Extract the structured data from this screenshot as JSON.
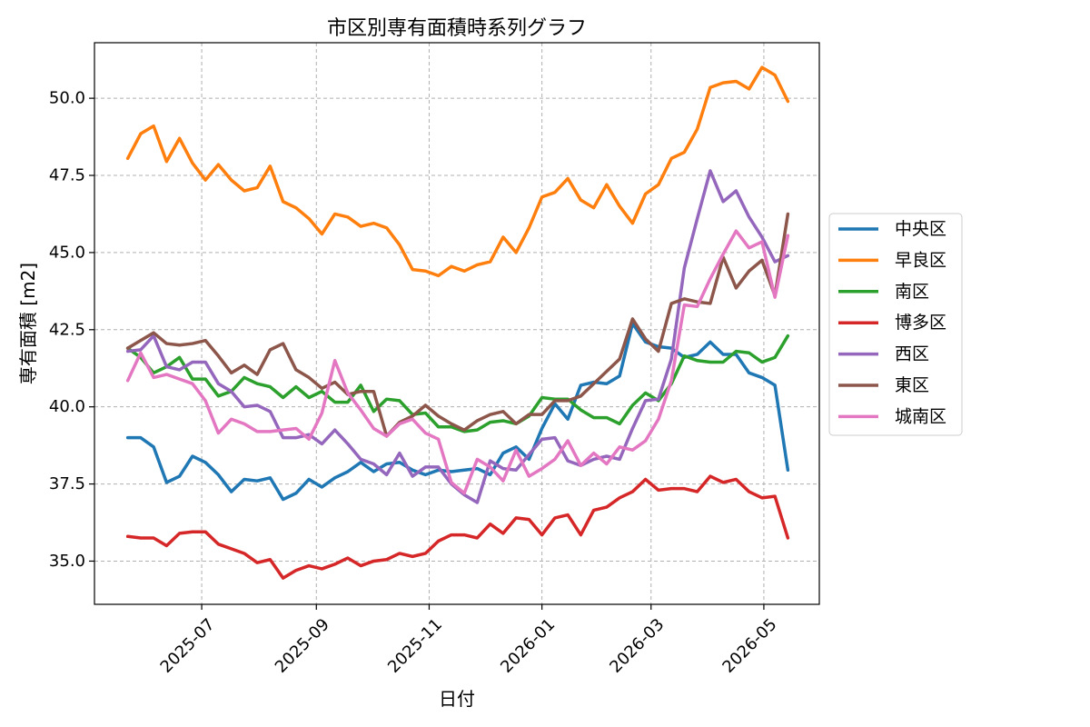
{
  "chart_data": {
    "type": "line",
    "title": "市区別専有面積時系列グラフ",
    "xlabel": "日付",
    "ylabel": "専有面積 [m2]",
    "x_ticks": [
      "2025-07",
      "2025-09",
      "2025-11",
      "2026-01",
      "2026-03",
      "2026-05"
    ],
    "y_ticks": [
      "35.0",
      "37.5",
      "40.0",
      "42.5",
      "45.0",
      "47.5",
      "50.0"
    ],
    "ylim": [
      33.6,
      51.8
    ],
    "xlim": [
      "2025-05-04",
      "2026-05-31"
    ],
    "grid": true,
    "legend_position": "outside-right",
    "x": [
      "2025-05-22",
      "2025-05-29",
      "2025-06-05",
      "2025-06-12",
      "2025-06-19",
      "2025-06-26",
      "2025-07-03",
      "2025-07-10",
      "2025-07-17",
      "2025-07-24",
      "2025-07-31",
      "2025-08-07",
      "2025-08-14",
      "2025-08-21",
      "2025-08-28",
      "2025-09-04",
      "2025-09-11",
      "2025-09-18",
      "2025-09-25",
      "2025-10-02",
      "2025-10-09",
      "2025-10-16",
      "2025-10-23",
      "2025-10-30",
      "2025-11-06",
      "2025-11-13",
      "2025-11-20",
      "2025-11-27",
      "2025-12-04",
      "2025-12-11",
      "2025-12-18",
      "2025-12-25",
      "2026-01-01",
      "2026-01-08",
      "2026-01-15",
      "2026-01-22",
      "2026-01-29",
      "2026-02-05",
      "2026-02-12",
      "2026-02-19",
      "2026-02-26",
      "2026-03-05",
      "2026-03-12",
      "2026-03-19",
      "2026-03-26",
      "2026-04-02",
      "2026-04-09",
      "2026-04-16",
      "2026-04-23",
      "2026-04-30",
      "2026-05-07",
      "2026-05-14"
    ],
    "series": [
      {
        "name": "中央区",
        "color": "#1f77b4",
        "values": [
          39.0,
          39.0,
          38.7,
          37.55,
          37.75,
          38.4,
          38.2,
          37.8,
          37.25,
          37.65,
          37.6,
          37.7,
          37.0,
          37.2,
          37.65,
          37.4,
          37.7,
          37.9,
          38.2,
          37.9,
          38.15,
          38.2,
          37.95,
          37.8,
          37.95,
          37.9,
          37.95,
          38.0,
          37.8,
          38.5,
          38.7,
          38.3,
          39.3,
          40.1,
          39.6,
          40.7,
          40.8,
          40.75,
          41.0,
          42.7,
          42.1,
          41.95,
          41.9,
          41.6,
          41.7,
          42.1,
          41.7,
          41.7,
          41.1,
          40.95,
          40.7,
          37.95
        ]
      },
      {
        "name": "早良区",
        "color": "#ff7f0e",
        "values": [
          48.05,
          48.85,
          49.1,
          47.95,
          48.7,
          47.9,
          47.35,
          47.85,
          47.35,
          47.0,
          47.1,
          47.8,
          46.65,
          46.45,
          46.1,
          45.6,
          46.25,
          46.15,
          45.85,
          45.95,
          45.8,
          45.25,
          44.45,
          44.4,
          44.25,
          44.55,
          44.4,
          44.6,
          44.7,
          45.5,
          45.0,
          45.8,
          46.8,
          46.95,
          47.4,
          46.7,
          46.45,
          47.2,
          46.5,
          45.95,
          46.9,
          47.2,
          48.05,
          48.25,
          49.0,
          50.35,
          50.5,
          50.55,
          50.3,
          51.0,
          50.75,
          49.9
        ]
      },
      {
        "name": "南区",
        "color": "#2ca02c",
        "values": [
          41.9,
          41.6,
          41.1,
          41.3,
          41.6,
          40.9,
          40.9,
          40.35,
          40.5,
          40.95,
          40.75,
          40.65,
          40.3,
          40.65,
          40.3,
          40.5,
          40.15,
          40.15,
          40.7,
          39.85,
          40.25,
          40.2,
          39.75,
          39.8,
          39.35,
          39.35,
          39.2,
          39.25,
          39.5,
          39.55,
          39.45,
          39.7,
          40.3,
          40.25,
          40.25,
          39.9,
          39.65,
          39.65,
          39.45,
          40.05,
          40.45,
          40.2,
          40.75,
          41.65,
          41.5,
          41.45,
          41.45,
          41.8,
          41.75,
          41.45,
          41.6,
          42.3
        ]
      },
      {
        "name": "博多区",
        "color": "#d62728",
        "values": [
          35.8,
          35.75,
          35.75,
          35.5,
          35.9,
          35.95,
          35.95,
          35.55,
          35.4,
          35.25,
          34.95,
          35.05,
          34.45,
          34.7,
          34.85,
          34.75,
          34.9,
          35.1,
          34.85,
          35.0,
          35.05,
          35.25,
          35.15,
          35.25,
          35.65,
          35.85,
          35.85,
          35.75,
          36.2,
          35.9,
          36.4,
          36.35,
          35.85,
          36.4,
          36.5,
          35.85,
          36.65,
          36.75,
          37.05,
          37.25,
          37.65,
          37.3,
          37.35,
          37.35,
          37.25,
          37.75,
          37.55,
          37.65,
          37.25,
          37.05,
          37.1,
          35.75
        ]
      },
      {
        "name": "西区",
        "color": "#9467bd",
        "values": [
          41.8,
          41.85,
          42.3,
          41.3,
          41.2,
          41.45,
          41.45,
          40.75,
          40.5,
          40.0,
          40.05,
          39.85,
          39.0,
          39.0,
          39.1,
          38.8,
          39.25,
          38.8,
          38.3,
          38.15,
          37.8,
          38.5,
          37.75,
          38.05,
          38.05,
          37.5,
          37.15,
          36.9,
          38.25,
          38.0,
          37.95,
          38.45,
          38.95,
          39.0,
          38.25,
          38.1,
          38.3,
          38.4,
          38.3,
          39.3,
          40.2,
          40.25,
          41.55,
          44.5,
          46.1,
          47.65,
          46.65,
          47.0,
          46.15,
          45.5,
          44.7,
          44.9
        ]
      },
      {
        "name": "東区",
        "color": "#8c564b",
        "values": [
          41.9,
          42.15,
          42.4,
          42.05,
          42.0,
          42.05,
          42.15,
          41.65,
          41.1,
          41.35,
          41.05,
          41.85,
          42.05,
          41.2,
          40.95,
          40.6,
          40.8,
          40.4,
          40.5,
          40.5,
          39.05,
          39.5,
          39.7,
          40.05,
          39.7,
          39.45,
          39.25,
          39.55,
          39.75,
          39.85,
          39.45,
          39.75,
          39.75,
          40.2,
          40.2,
          40.35,
          40.75,
          41.15,
          41.55,
          42.85,
          42.2,
          41.8,
          43.35,
          43.5,
          43.4,
          43.35,
          44.85,
          43.85,
          44.4,
          44.75,
          43.6,
          46.25
        ]
      },
      {
        "name": "城南区",
        "color": "#e377c2",
        "values": [
          40.85,
          41.75,
          40.95,
          41.05,
          40.9,
          40.75,
          40.2,
          39.15,
          39.6,
          39.45,
          39.2,
          39.2,
          39.25,
          39.3,
          38.95,
          39.8,
          41.5,
          40.45,
          39.9,
          39.3,
          39.05,
          39.45,
          39.6,
          39.15,
          38.95,
          37.55,
          37.2,
          38.3,
          38.05,
          37.6,
          38.6,
          37.75,
          38.0,
          38.3,
          38.9,
          38.1,
          38.5,
          38.15,
          38.7,
          38.6,
          38.9,
          39.6,
          40.85,
          43.3,
          43.25,
          44.15,
          44.95,
          45.7,
          45.15,
          45.35,
          43.55,
          45.55
        ]
      }
    ]
  }
}
